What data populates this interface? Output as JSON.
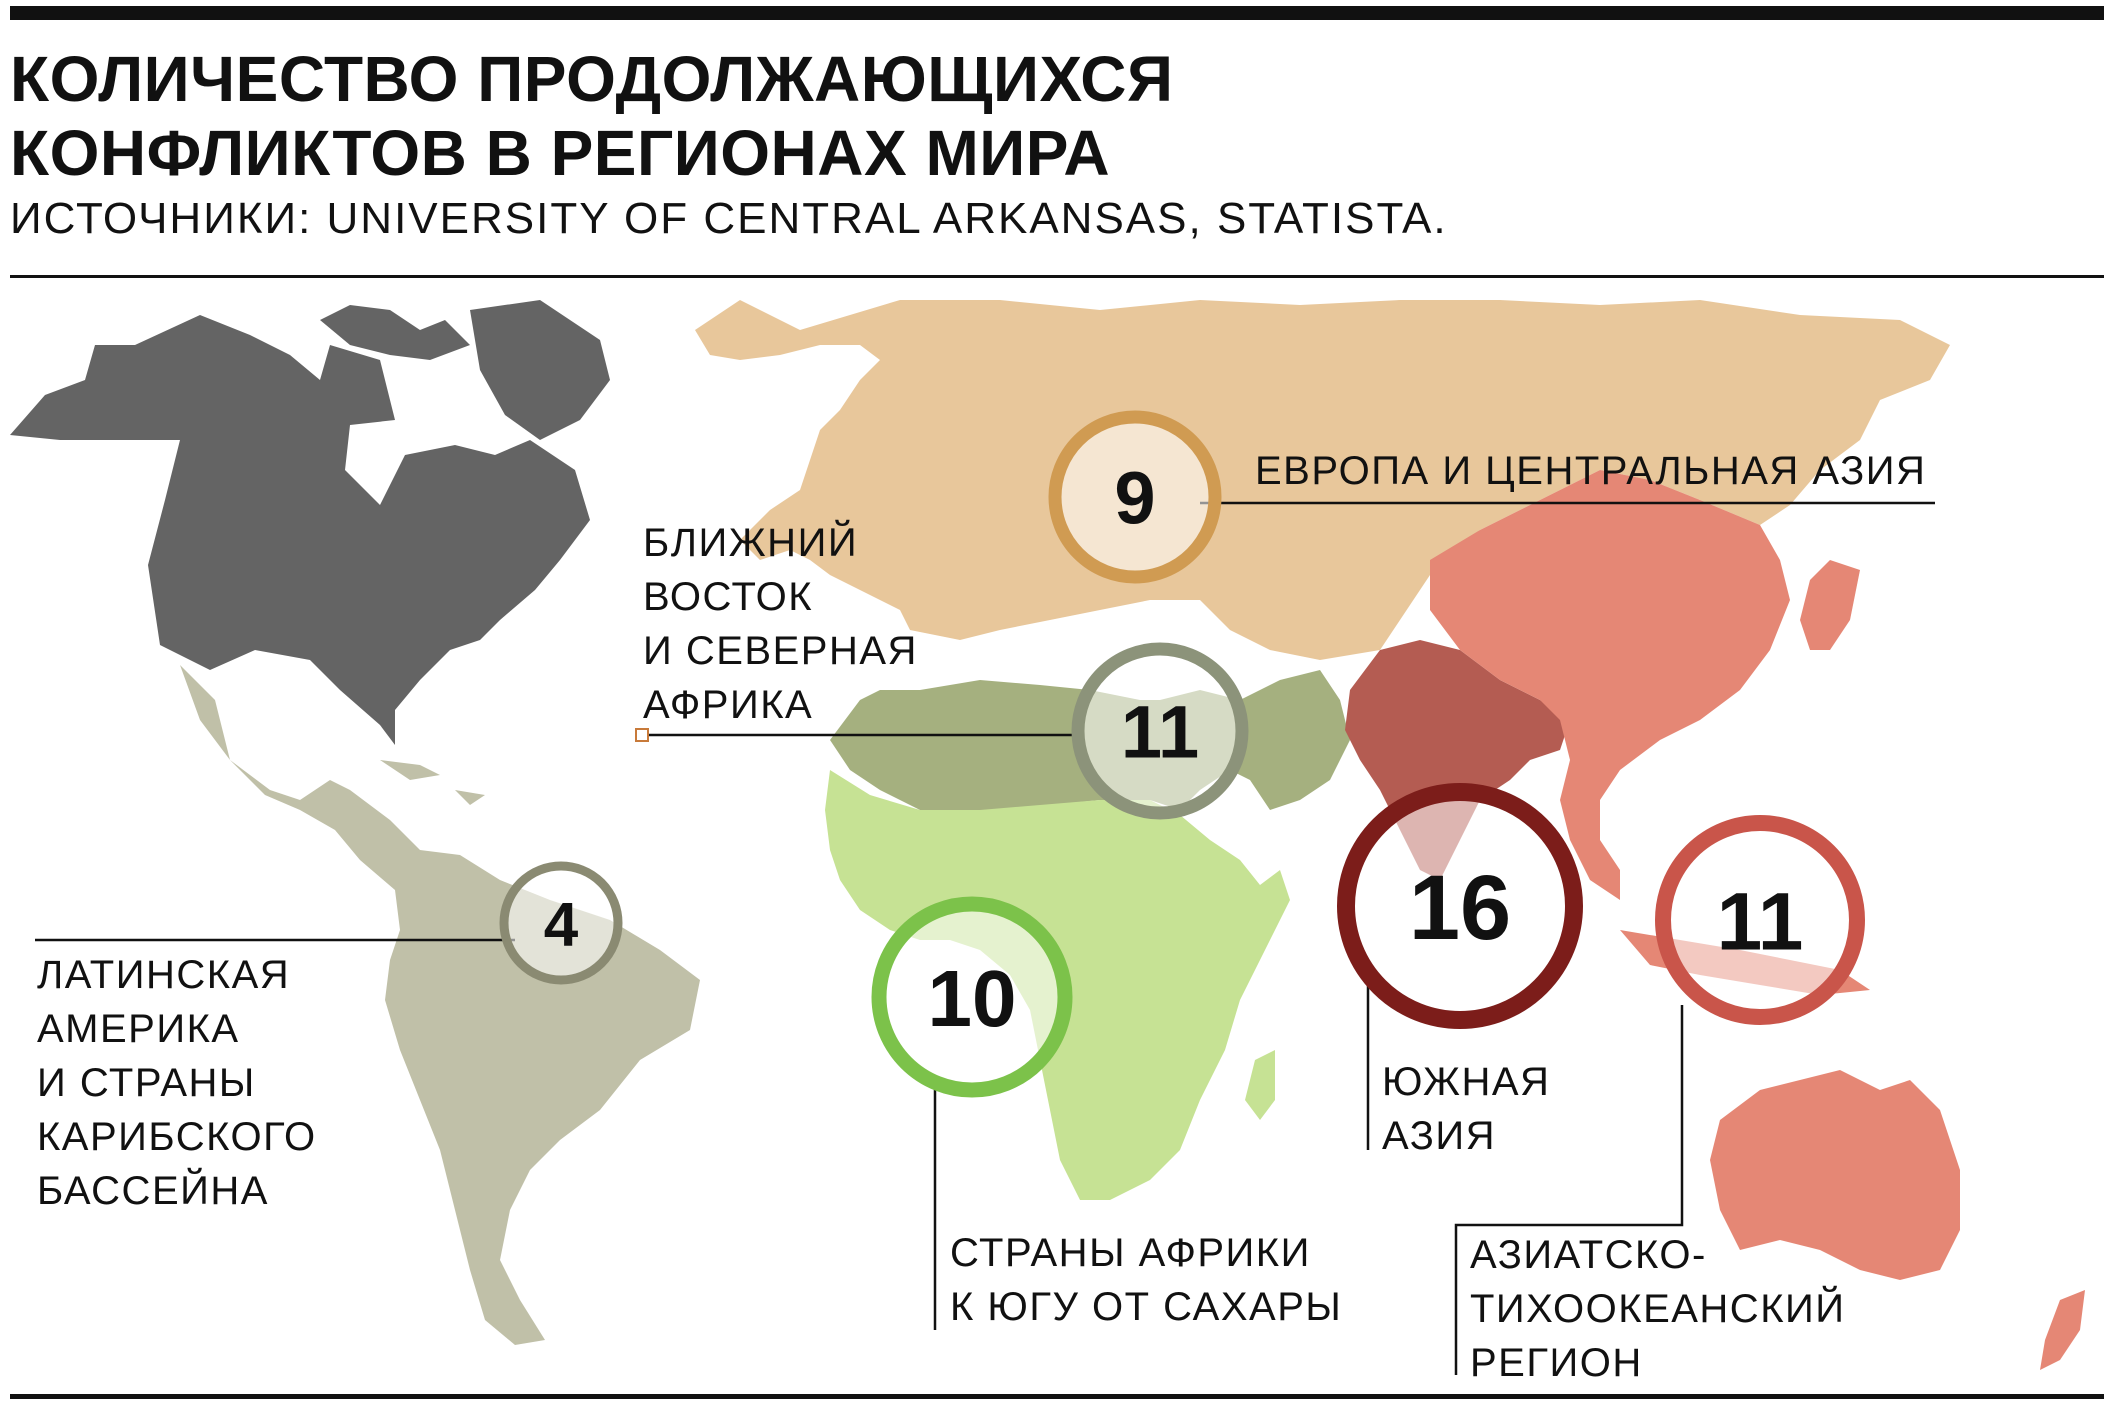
{
  "title_lines": [
    "КОЛИЧЕСТВО ПРОДОЛЖАЮЩИХСЯ",
    "КОНФЛИКТОВ В РЕГИОНАХ МИРА"
  ],
  "source": "ИСТОЧНИКИ: UNIVERSITY OF CENTRAL ARKANSAS, STATISTA.",
  "regions": [
    {
      "id": "europe",
      "value": "9",
      "label_lines": [
        "ЕВРОПА И ЦЕНТРАЛЬНАЯ АЗИЯ"
      ],
      "ring_color": "#d09b52",
      "fill_color": "#e8c79b"
    },
    {
      "id": "mena",
      "value": "11",
      "label_lines": [
        "БЛИЖНИЙ",
        "ВОСТОК",
        "И СЕВЕРНАЯ",
        "АФРИКА"
      ],
      "ring_color": "#8c937a",
      "fill_color": "#a5b07f"
    },
    {
      "id": "latam",
      "value": "4",
      "label_lines": [
        "ЛАТИНСКАЯ",
        "АМЕРИКА",
        "И СТРАНЫ",
        "КАРИБСКОГО",
        "БАССЕЙНА"
      ],
      "ring_color": "#8a8a72",
      "fill_color": "#c0c0a8"
    },
    {
      "id": "ssa",
      "value": "10",
      "label_lines": [
        "СТРАНЫ АФРИКИ",
        "К ЮГУ ОТ САХАРЫ"
      ],
      "ring_color": "#7cc24a",
      "fill_color": "#c6e294"
    },
    {
      "id": "south_asia",
      "value": "16",
      "label_lines": [
        "ЮЖНАЯ",
        "АЗИЯ"
      ],
      "ring_color": "#7c1d1a",
      "fill_color": "#b45c52"
    },
    {
      "id": "apac",
      "value": "11",
      "label_lines": [
        "АЗИАТСКО-",
        "ТИХООКЕАНСКИЙ",
        "РЕГИОН"
      ],
      "ring_color": "#c9554a",
      "fill_color": "#e58775"
    }
  ],
  "colors": {
    "north_america": "#646464",
    "line": "#111111"
  }
}
